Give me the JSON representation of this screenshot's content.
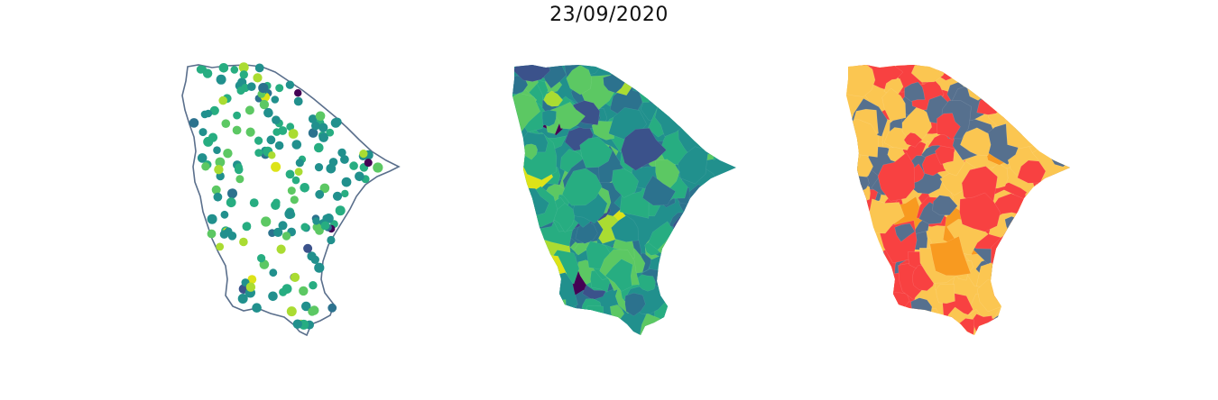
{
  "title": "23/09/2020",
  "colors": {
    "outline": "#5a6f8c",
    "viridis": [
      "#440154",
      "#3b528b",
      "#2c728e",
      "#21908d",
      "#27ad81",
      "#5cc863",
      "#aadc32",
      "#dde318"
    ],
    "categories": [
      "#56708e",
      "#fbc651",
      "#f84141",
      "#f89a20"
    ]
  }
}
